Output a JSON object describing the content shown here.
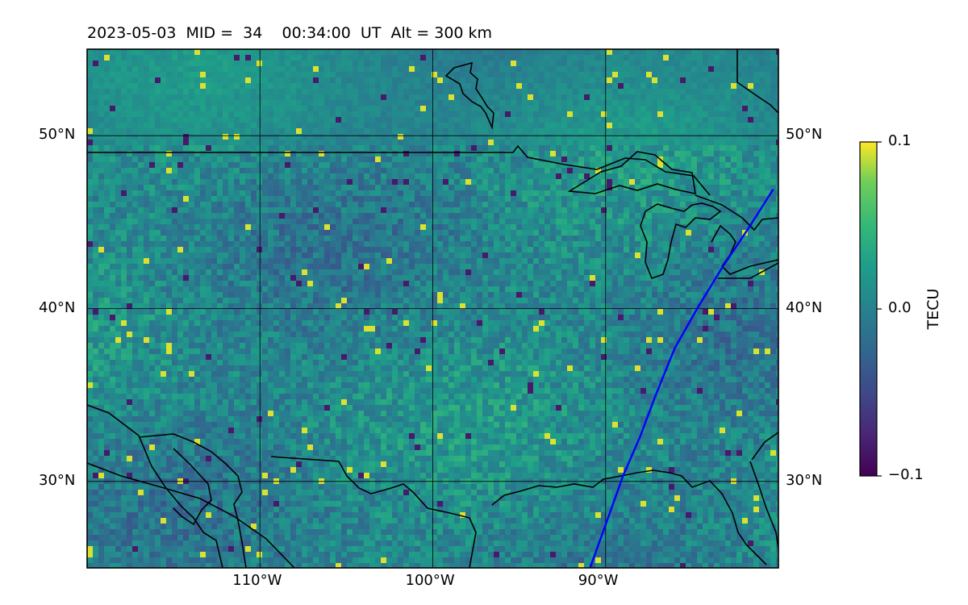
{
  "title": "2023-05-03  MID =  34    00:34:00  UT  Alt = 300 km",
  "map": {
    "lon_range": [
      -120,
      -80
    ],
    "lat_range": [
      25,
      55
    ],
    "lon_ticks": [
      {
        "value": -110,
        "label": "110°W"
      },
      {
        "value": -100,
        "label": "100°W"
      },
      {
        "value": -90,
        "label": "90°W"
      }
    ],
    "lat_ticks": [
      {
        "value": 50,
        "label": "50°N"
      },
      {
        "value": 40,
        "label": "40°N"
      },
      {
        "value": 30,
        "label": "30°N"
      }
    ],
    "gridlines": true,
    "field": "TEC perturbation",
    "colormap": "viridis",
    "satellite_track": {
      "color": "#0000ff",
      "points": [
        [
          -90.9,
          25
        ],
        [
          -90,
          27.5
        ],
        [
          -89,
          30.3
        ],
        [
          -88,
          32.6
        ],
        [
          -87.1,
          35
        ],
        [
          -86,
          37.7
        ],
        [
          -84.7,
          40
        ],
        [
          -83.3,
          42.3
        ],
        [
          -81.7,
          44.7
        ],
        [
          -80.3,
          46.9
        ]
      ]
    }
  },
  "colorbar": {
    "label": "TECU",
    "min": -0.1,
    "max": 0.1,
    "ticks": [
      {
        "value": 0.1,
        "label": "0.1"
      },
      {
        "value": 0.0,
        "label": "0.0"
      },
      {
        "value": -0.1,
        "label": "−0.1"
      }
    ]
  }
}
